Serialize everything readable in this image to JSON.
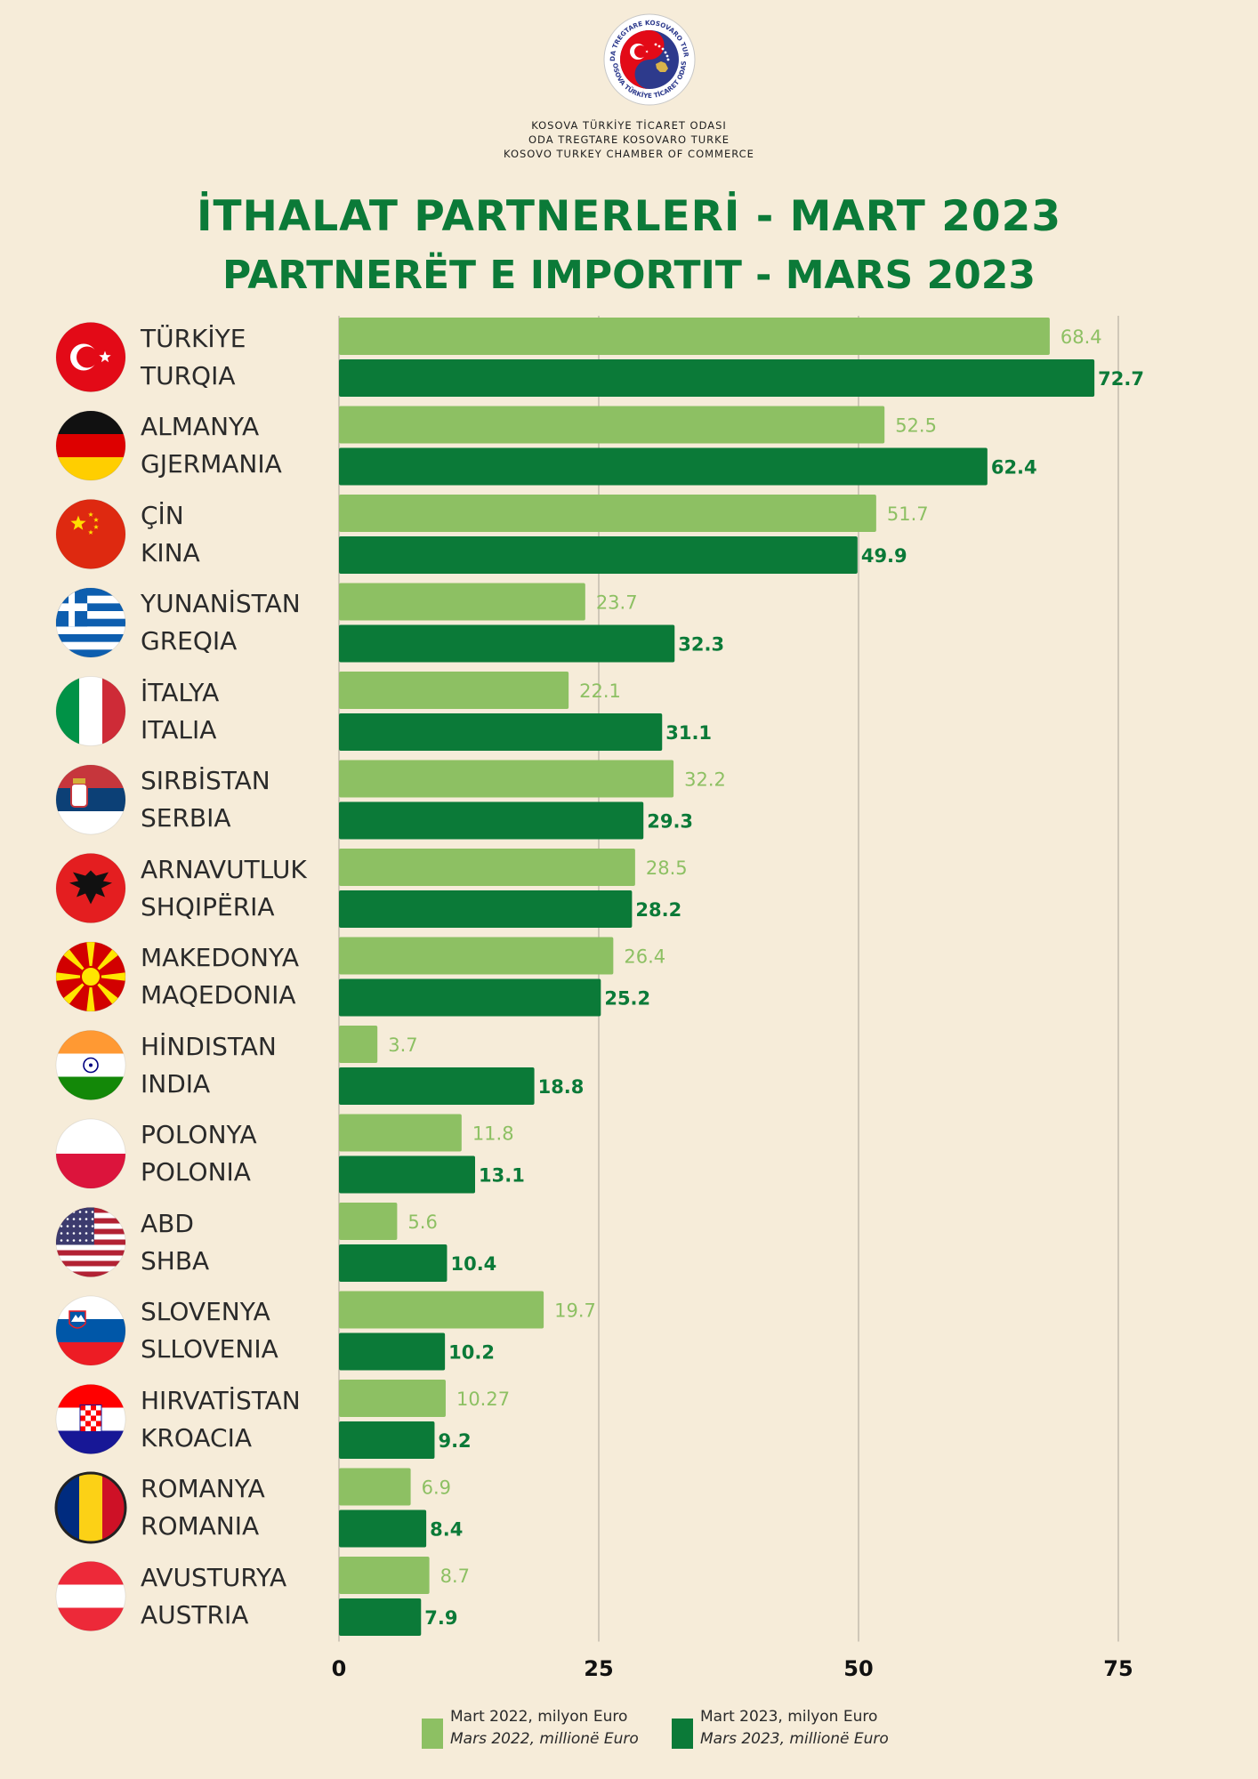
{
  "header": {
    "org_lines": [
      "KOSOVA TÜRKİYE TİCARET ODASI",
      "ODA TREGTARE KOSOVARO TURKE",
      "KOSOVO TURKEY CHAMBER OF COMMERCE"
    ],
    "logo_ring_top": "ODA TREGTARE KOSOVARO TURKE",
    "logo_ring_bottom": "KOSOVA TÜRKİYE TİCARET ODASI"
  },
  "colors": {
    "background": "#f6ecd9",
    "title": "#0b7a38",
    "series_2022": "#8dc063",
    "series_2023": "#0b7a38"
  },
  "chart_data": {
    "type": "bar",
    "orientation": "horizontal",
    "title": "İTHALAT PARTNERLERİ - MART 2023",
    "subtitle": "PARTNERËT E IMPORTIT - MARS 2023",
    "xlim": [
      0,
      75
    ],
    "xticks": [
      0,
      25,
      50,
      75
    ],
    "grid": true,
    "legend_position": "bottom",
    "categories": [
      {
        "tr": "TÜRKİYE",
        "sq": "TURQIA",
        "flag": "turkey-flag-icon"
      },
      {
        "tr": "ALMANYA",
        "sq": "GJERMANIA",
        "flag": "germany-flag-icon"
      },
      {
        "tr": "ÇİN",
        "sq": "KINA",
        "flag": "china-flag-icon"
      },
      {
        "tr": "YUNANİSTAN",
        "sq": "GREQIA",
        "flag": "greece-flag-icon"
      },
      {
        "tr": "İTALYA",
        "sq": "ITALIA",
        "flag": "italy-flag-icon"
      },
      {
        "tr": "SIRBİSTAN",
        "sq": "SERBIA",
        "flag": "serbia-flag-icon"
      },
      {
        "tr": "ARNAVUTLUK",
        "sq": "SHQIPËRIA",
        "flag": "albania-flag-icon"
      },
      {
        "tr": "MAKEDONYA",
        "sq": "MAQEDONIA",
        "flag": "macedonia-flag-icon"
      },
      {
        "tr": "HİNDISTAN",
        "sq": "INDIA",
        "flag": "india-flag-icon"
      },
      {
        "tr": "POLONYA",
        "sq": "POLONIA",
        "flag": "poland-flag-icon"
      },
      {
        "tr": "ABD",
        "sq": "SHBA",
        "flag": "usa-flag-icon"
      },
      {
        "tr": "SLOVENYA",
        "sq": "SLLOVENIA",
        "flag": "slovenia-flag-icon"
      },
      {
        "tr": "HIRVATİSTAN",
        "sq": "KROACIA",
        "flag": "croatia-flag-icon"
      },
      {
        "tr": "ROMANYA",
        "sq": "ROMANIA",
        "flag": "romania-flag-icon"
      },
      {
        "tr": "AVUSTURYA",
        "sq": "AUSTRIA",
        "flag": "austria-flag-icon"
      }
    ],
    "series": [
      {
        "name": "Mart 2022, milyon Euro",
        "name_sq": "Mars 2022, millionë Euro",
        "values": [
          68.4,
          52.5,
          51.7,
          23.7,
          22.1,
          32.2,
          28.5,
          26.4,
          3.7,
          11.8,
          5.6,
          19.7,
          10.27,
          6.9,
          8.7
        ],
        "labels": [
          "68.4",
          "52.5",
          "51.7",
          "23.7",
          "22.1",
          "32.2",
          "28.5",
          "26.4",
          "3.7",
          "11.8",
          "5.6",
          "19.7",
          "10.27",
          "6.9",
          "8.7"
        ]
      },
      {
        "name": "Mart 2023, milyon Euro",
        "name_sq": "Mars 2023, millionë Euro",
        "values": [
          72.7,
          62.4,
          49.9,
          32.3,
          31.1,
          29.3,
          28.2,
          25.2,
          18.8,
          13.1,
          10.4,
          10.2,
          9.2,
          8.4,
          7.9
        ],
        "labels": [
          "72.7",
          "62.4",
          "49.9",
          "32.3",
          "31.1",
          "29.3",
          "28.2",
          "25.2",
          "18.8",
          "13.1",
          "10.4",
          "10.2",
          "9.2",
          "8.4",
          "7.9"
        ]
      }
    ]
  }
}
